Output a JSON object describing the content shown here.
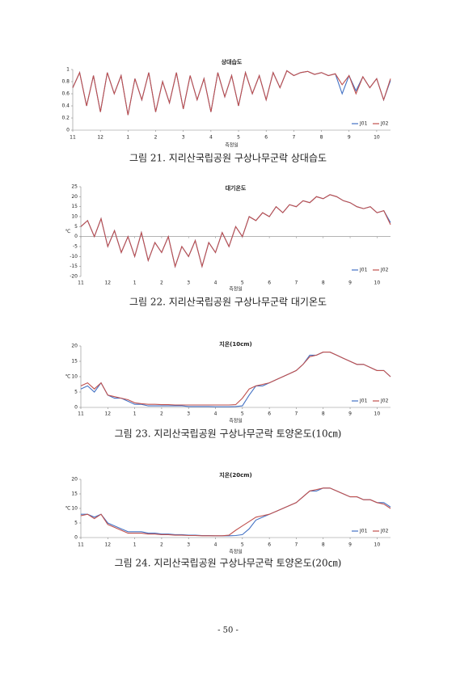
{
  "chart_data": [
    {
      "type": "line",
      "title": "상대습도",
      "caption": "그림 21. 지리산국립공원 구상나무군락 상대습도",
      "x_label": "측정일",
      "categories": [
        "11",
        null,
        null,
        null,
        "12",
        null,
        null,
        null,
        "1",
        null,
        null,
        null,
        "2",
        null,
        null,
        null,
        "3",
        null,
        null,
        null,
        "4",
        null,
        null,
        null,
        "5",
        null,
        null,
        null,
        "6",
        null,
        null,
        null,
        "7",
        null,
        null,
        null,
        "8",
        null,
        null,
        null,
        "9",
        null,
        null,
        null,
        "10",
        null,
        null
      ],
      "ylim": [
        0,
        1
      ],
      "yticks": [
        0,
        0.2,
        0.4,
        0.6,
        0.8,
        1
      ],
      "grid": false,
      "legend": "lower-right",
      "series": [
        {
          "name": "J01",
          "color": "#4472c4",
          "values": [
            0.7,
            0.95,
            0.4,
            0.9,
            0.3,
            0.95,
            0.6,
            0.9,
            0.25,
            0.85,
            0.5,
            0.95,
            0.3,
            0.8,
            0.45,
            0.95,
            0.35,
            0.9,
            0.5,
            0.85,
            0.3,
            0.95,
            0.55,
            0.9,
            0.4,
            0.95,
            0.6,
            0.9,
            0.5,
            0.95,
            0.7,
            0.98,
            0.9,
            0.95,
            0.97,
            0.92,
            0.95,
            0.9,
            0.93,
            0.6,
            0.9,
            0.65,
            0.88,
            0.7,
            0.85,
            0.5,
            0.82
          ]
        },
        {
          "name": "J02",
          "color": "#c0504d",
          "values": [
            0.7,
            0.95,
            0.4,
            0.9,
            0.3,
            0.95,
            0.6,
            0.9,
            0.25,
            0.85,
            0.5,
            0.95,
            0.3,
            0.8,
            0.45,
            0.95,
            0.35,
            0.9,
            0.5,
            0.85,
            0.3,
            0.95,
            0.55,
            0.9,
            0.4,
            0.95,
            0.6,
            0.9,
            0.5,
            0.95,
            0.7,
            0.98,
            0.9,
            0.95,
            0.97,
            0.92,
            0.95,
            0.9,
            0.93,
            0.75,
            0.9,
            0.6,
            0.88,
            0.7,
            0.85,
            0.5,
            0.85
          ]
        }
      ]
    },
    {
      "type": "line",
      "title": "대기온도",
      "caption": "그림 22. 지리산국립공원 구상나무군락 대기온도",
      "x_label": "측정일",
      "y_label": "℃",
      "categories": [
        "11",
        null,
        null,
        null,
        "12",
        null,
        null,
        null,
        "1",
        null,
        null,
        null,
        "2",
        null,
        null,
        null,
        "3",
        null,
        null,
        null,
        "4",
        null,
        null,
        null,
        "5",
        null,
        null,
        null,
        "6",
        null,
        null,
        null,
        "7",
        null,
        null,
        null,
        "8",
        null,
        null,
        null,
        "9",
        null,
        null,
        null,
        "10",
        null,
        null
      ],
      "ylim": [
        -20,
        25
      ],
      "yticks": [
        -20,
        -15,
        -10,
        -5,
        0,
        5,
        10,
        15,
        20,
        25
      ],
      "grid": false,
      "legend": "lower-right",
      "series": [
        {
          "name": "J01",
          "color": "#4472c4",
          "values": [
            5,
            8,
            0,
            9,
            -5,
            3,
            -8,
            0,
            -10,
            2,
            -12,
            -3,
            -8,
            0,
            -15,
            -5,
            -10,
            -2,
            -15,
            -3,
            -8,
            2,
            -5,
            5,
            0,
            10,
            8,
            12,
            10,
            15,
            12,
            16,
            15,
            18,
            17,
            20,
            19,
            21,
            20,
            18,
            17,
            15,
            14,
            15,
            12,
            13,
            7
          ]
        },
        {
          "name": "J02",
          "color": "#c0504d",
          "values": [
            5,
            8,
            0,
            9,
            -5,
            3,
            -8,
            0,
            -10,
            2,
            -12,
            -3,
            -8,
            0,
            -15,
            -5,
            -10,
            -2,
            -15,
            -3,
            -8,
            2,
            -5,
            5,
            0,
            10,
            8,
            12,
            10,
            15,
            12,
            16,
            15,
            18,
            17,
            20,
            19,
            21,
            20,
            18,
            17,
            15,
            14,
            15,
            12,
            13,
            6
          ]
        }
      ]
    },
    {
      "type": "line",
      "title": "지온(10cm)",
      "caption": "그림 23. 지리산국립공원 구상나무군락 토양온도(10㎝)",
      "x_label": "측정일",
      "y_label": "℃",
      "categories": [
        "11",
        null,
        null,
        null,
        "12",
        null,
        null,
        null,
        "1",
        null,
        null,
        null,
        "2",
        null,
        null,
        null,
        "3",
        null,
        null,
        null,
        "4",
        null,
        null,
        null,
        "5",
        null,
        null,
        null,
        "6",
        null,
        null,
        null,
        "7",
        null,
        null,
        null,
        "8",
        null,
        null,
        null,
        "9",
        null,
        null,
        null,
        "10",
        null,
        null
      ],
      "ylim": [
        0,
        20
      ],
      "yticks": [
        0,
        5,
        10,
        15,
        20
      ],
      "grid": false,
      "legend": "lower-right",
      "series": [
        {
          "name": "J01",
          "color": "#4472c4",
          "values": [
            6,
            7,
            5,
            8,
            4,
            3,
            3,
            2,
            1,
            1,
            0.5,
            0.5,
            0.5,
            0.5,
            0.5,
            0.5,
            0.3,
            0.3,
            0.3,
            0.3,
            0.2,
            0.2,
            0.2,
            0.3,
            0.5,
            4,
            7,
            7,
            8,
            9,
            10,
            11,
            12,
            14,
            17,
            17,
            18,
            18,
            17,
            16,
            15,
            14,
            14,
            13,
            12,
            12,
            10
          ]
        },
        {
          "name": "J02",
          "color": "#c0504d",
          "values": [
            7,
            8,
            6,
            8,
            4,
            3.5,
            3,
            2.5,
            1.5,
            1.2,
            1,
            1,
            0.9,
            0.9,
            0.8,
            0.8,
            0.8,
            0.8,
            0.8,
            0.8,
            0.8,
            0.8,
            0.8,
            0.9,
            3,
            6,
            7,
            7.5,
            8,
            9,
            10,
            11,
            12,
            14,
            16.5,
            17,
            18,
            18,
            17,
            16,
            15,
            14,
            14,
            13,
            12,
            12,
            10
          ]
        }
      ]
    },
    {
      "type": "line",
      "title": "지온(20cm)",
      "caption": "그림 24. 지리산국립공원 구상나무군락 토양온도(20㎝)",
      "x_label": "측정일",
      "y_label": "℃",
      "categories": [
        "11",
        null,
        null,
        null,
        "12",
        null,
        null,
        null,
        "1",
        null,
        null,
        null,
        "2",
        null,
        null,
        null,
        "3",
        null,
        null,
        null,
        "4",
        null,
        null,
        null,
        "5",
        null,
        null,
        null,
        "6",
        null,
        null,
        null,
        "7",
        null,
        null,
        null,
        "8",
        null,
        null,
        null,
        "9",
        null,
        null,
        null,
        "10",
        null,
        null
      ],
      "ylim": [
        0,
        20
      ],
      "yticks": [
        0,
        5,
        10,
        15,
        20
      ],
      "grid": false,
      "legend": "lower-right",
      "series": [
        {
          "name": "J01",
          "color": "#4472c4",
          "values": [
            8,
            8,
            7,
            8,
            5,
            4,
            3,
            2,
            2,
            2,
            1.5,
            1.5,
            1.2,
            1.2,
            1,
            1,
            0.8,
            0.8,
            0.7,
            0.7,
            0.6,
            0.6,
            0.6,
            0.7,
            1,
            3,
            6,
            7,
            8,
            9,
            10,
            11,
            12,
            14,
            16,
            16,
            17,
            17,
            16,
            15,
            14,
            14,
            13,
            13,
            12,
            12,
            10.5
          ]
        },
        {
          "name": "J02",
          "color": "#c0504d",
          "values": [
            7.5,
            8,
            6.5,
            8,
            4.5,
            3.5,
            2.5,
            1.5,
            1.5,
            1.5,
            1.2,
            1.2,
            1,
            1,
            0.8,
            0.8,
            0.7,
            0.7,
            0.6,
            0.6,
            0.6,
            0.6,
            0.8,
            2.5,
            4,
            5.5,
            7,
            7.5,
            8,
            9,
            10,
            11,
            12,
            14,
            16,
            16.5,
            17,
            17,
            16,
            15,
            14,
            14,
            13,
            13,
            12,
            11.5,
            10
          ]
        }
      ]
    }
  ],
  "page_number": "- 50 -"
}
